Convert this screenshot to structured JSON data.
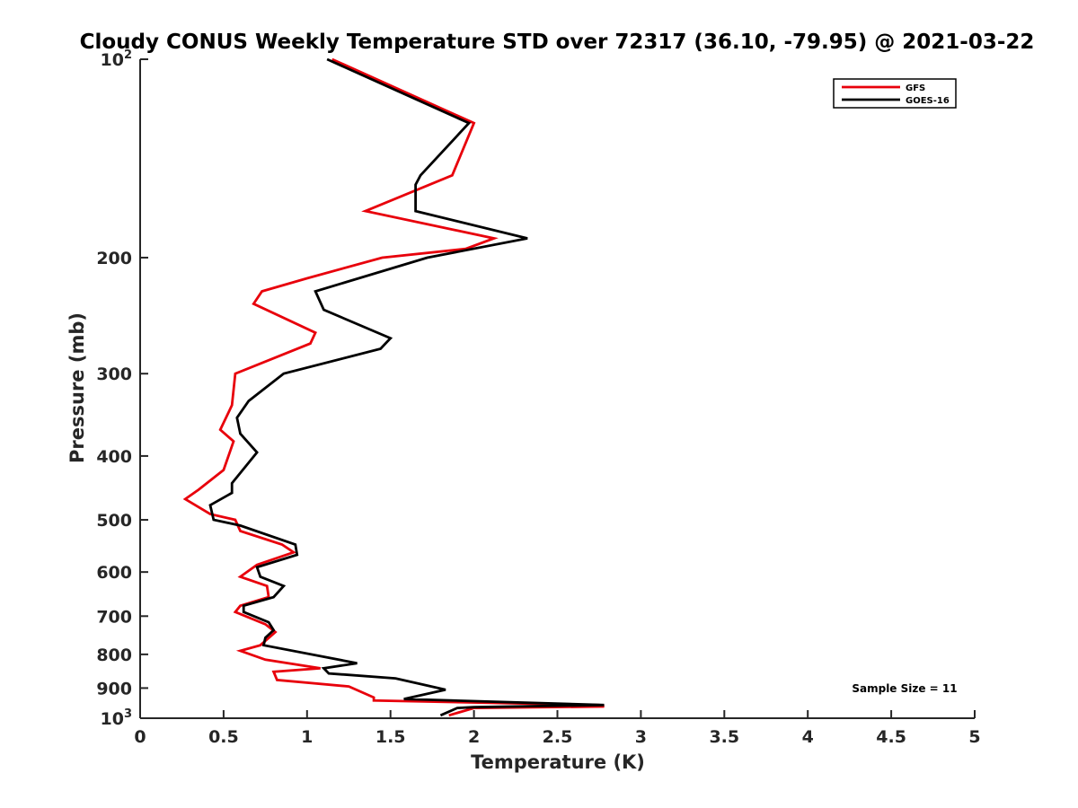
{
  "chart_data": {
    "type": "line",
    "title": "Cloudy CONUS Weekly Temperature STD over 72317 (36.10, -79.95) @ 2021-03-22",
    "xlabel": "Temperature (K)",
    "ylabel": "Pressure (mb)",
    "xlim": [
      0,
      5
    ],
    "ylim": [
      100,
      1000
    ],
    "y_scale": "log",
    "y_reversed": true,
    "grid": false,
    "legend_position": "top-right",
    "x_ticks": [
      {
        "value": 0,
        "label": "0"
      },
      {
        "value": 0.5,
        "label": "0.5"
      },
      {
        "value": 1,
        "label": "1"
      },
      {
        "value": 1.5,
        "label": "1.5"
      },
      {
        "value": 2,
        "label": "2"
      },
      {
        "value": 2.5,
        "label": "2.5"
      },
      {
        "value": 3,
        "label": "3"
      },
      {
        "value": 3.5,
        "label": "3.5"
      },
      {
        "value": 4,
        "label": "4"
      },
      {
        "value": 4.5,
        "label": "4.5"
      },
      {
        "value": 5,
        "label": "5"
      }
    ],
    "y_ticks": [
      {
        "value": 100,
        "base": "10",
        "exp": "2"
      },
      {
        "value": 200,
        "label": "200"
      },
      {
        "value": 300,
        "label": "300"
      },
      {
        "value": 400,
        "label": "400"
      },
      {
        "value": 500,
        "label": "500"
      },
      {
        "value": 600,
        "label": "600"
      },
      {
        "value": 700,
        "label": "700"
      },
      {
        "value": 800,
        "label": "800"
      },
      {
        "value": 900,
        "label": "900"
      },
      {
        "value": 1000,
        "base": "10",
        "exp": "3"
      }
    ],
    "series": [
      {
        "name": "GFS",
        "color": "#e8000b",
        "points": [
          [
            1.15,
            100
          ],
          [
            2.0,
            125
          ],
          [
            1.87,
            150
          ],
          [
            1.35,
            170
          ],
          [
            2.12,
            187
          ],
          [
            1.95,
            194
          ],
          [
            1.45,
            200
          ],
          [
            1.0,
            215
          ],
          [
            0.73,
            225
          ],
          [
            0.68,
            235
          ],
          [
            1.05,
            260
          ],
          [
            1.02,
            270
          ],
          [
            0.57,
            300
          ],
          [
            0.55,
            335
          ],
          [
            0.48,
            365
          ],
          [
            0.56,
            380
          ],
          [
            0.5,
            420
          ],
          [
            0.35,
            450
          ],
          [
            0.27,
            465
          ],
          [
            0.42,
            490
          ],
          [
            0.57,
            500
          ],
          [
            0.6,
            520
          ],
          [
            0.85,
            545
          ],
          [
            0.92,
            560
          ],
          [
            0.7,
            585
          ],
          [
            0.6,
            610
          ],
          [
            0.76,
            630
          ],
          [
            0.77,
            655
          ],
          [
            0.6,
            675
          ],
          [
            0.57,
            690
          ],
          [
            0.75,
            720
          ],
          [
            0.81,
            740
          ],
          [
            0.72,
            775
          ],
          [
            0.6,
            790
          ],
          [
            0.75,
            815
          ],
          [
            1.08,
            840
          ],
          [
            0.8,
            850
          ],
          [
            0.82,
            875
          ],
          [
            1.25,
            895
          ],
          [
            1.4,
            930
          ],
          [
            1.4,
            940
          ],
          [
            2.75,
            955
          ],
          [
            2.78,
            960
          ],
          [
            2.0,
            965
          ],
          [
            1.85,
            990
          ]
        ]
      },
      {
        "name": "GOES-16",
        "color": "#000000",
        "points": [
          [
            1.12,
            100
          ],
          [
            1.97,
            125
          ],
          [
            1.68,
            150
          ],
          [
            1.65,
            155
          ],
          [
            1.65,
            170
          ],
          [
            2.32,
            187
          ],
          [
            1.72,
            200
          ],
          [
            1.05,
            225
          ],
          [
            1.1,
            240
          ],
          [
            1.5,
            265
          ],
          [
            1.44,
            275
          ],
          [
            0.86,
            300
          ],
          [
            0.65,
            330
          ],
          [
            0.58,
            350
          ],
          [
            0.6,
            370
          ],
          [
            0.7,
            395
          ],
          [
            0.55,
            440
          ],
          [
            0.55,
            455
          ],
          [
            0.42,
            475
          ],
          [
            0.44,
            500
          ],
          [
            0.6,
            510
          ],
          [
            0.93,
            545
          ],
          [
            0.94,
            565
          ],
          [
            0.7,
            590
          ],
          [
            0.72,
            610
          ],
          [
            0.86,
            630
          ],
          [
            0.8,
            655
          ],
          [
            0.62,
            675
          ],
          [
            0.62,
            690
          ],
          [
            0.77,
            715
          ],
          [
            0.8,
            735
          ],
          [
            0.75,
            755
          ],
          [
            0.74,
            775
          ],
          [
            1.3,
            825
          ],
          [
            1.1,
            840
          ],
          [
            1.13,
            855
          ],
          [
            1.53,
            870
          ],
          [
            1.83,
            905
          ],
          [
            1.58,
            935
          ],
          [
            2.78,
            955
          ],
          [
            2.0,
            962
          ],
          [
            1.9,
            965
          ],
          [
            1.8,
            990
          ]
        ]
      }
    ],
    "annotation": "Sample Size = 11"
  }
}
